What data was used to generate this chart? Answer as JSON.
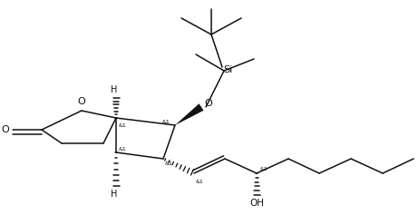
{
  "bg": "#ffffff",
  "lc": "#111111",
  "lw": 1.1,
  "figsize": [
    4.62,
    2.37
  ],
  "dpi": 100,
  "xlim": [
    0,
    462
  ],
  "ylim": [
    0,
    237
  ]
}
